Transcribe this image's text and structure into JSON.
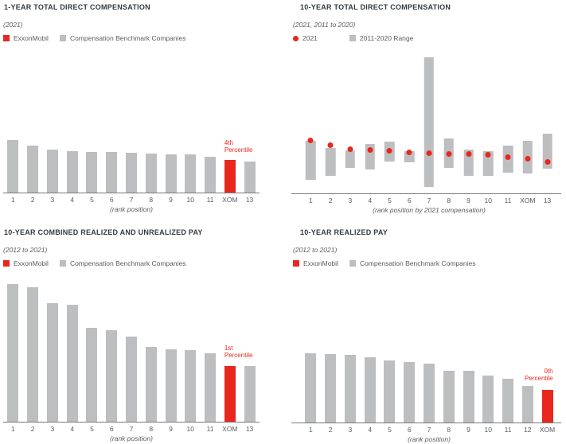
{
  "colors": {
    "exxon_red": "#e8271e",
    "benchmark_gray": "#bdbec0",
    "title_text": "#333a40",
    "muted_text": "#5a5b5e",
    "axis_line": "#797a7d",
    "background": "#ffffff"
  },
  "charts": [
    {
      "key": "one_year_total_direct_compensation",
      "title": "1-YEAR TOTAL DIRECT COMPENSATION",
      "subtitle": "(2021)",
      "legend": [
        {
          "swatch": "red-square",
          "label": "ExxonMobil"
        },
        {
          "swatch": "gray-square",
          "label": "Compensation Benchmark Companies"
        }
      ],
      "chart_data": {
        "type": "bar",
        "categories": [
          "1",
          "2",
          "3",
          "4",
          "5",
          "6",
          "7",
          "8",
          "9",
          "10",
          "11",
          "XOM",
          "13"
        ],
        "values": [
          66,
          59,
          54,
          52,
          51,
          51,
          50,
          49,
          48,
          48,
          45,
          41,
          39
        ],
        "value_units": "relative bar heights (px) — chart shows no numeric axis",
        "xlabel": "(rank position)",
        "highlight": {
          "category": "XOM",
          "index": 11,
          "color": "#e8271e"
        },
        "annotation": {
          "text": "4th Percentile",
          "lines": [
            "4th",
            "Percentile"
          ],
          "align": "left",
          "color": "#e8271e"
        },
        "grid": false,
        "legend_position": "top-left"
      }
    },
    {
      "key": "ten_year_total_direct_compensation",
      "title": "10-YEAR TOTAL DIRECT COMPENSATION",
      "subtitle": "(2021, 2011 to 2020)",
      "legend": [
        {
          "swatch": "red-dot",
          "label": "2021"
        },
        {
          "swatch": "gray-square",
          "label": "2011-2020 Range"
        }
      ],
      "chart_data": {
        "type": "range-dot",
        "categories": [
          "1",
          "2",
          "3",
          "4",
          "5",
          "6",
          "7",
          "8",
          "9",
          "10",
          "11",
          "XOM",
          "13"
        ],
        "series": [
          {
            "name": "2011-2020 Range",
            "low": [
              17,
              22,
              32,
              30,
              40,
              39,
              8,
              32,
              22,
              22,
              26,
              25,
              31
            ],
            "high": [
              66,
              57,
              54,
              62,
              65,
              53,
              171,
              69,
              55,
              53,
              60,
              66,
              75
            ]
          },
          {
            "name": "2021",
            "values": [
              67,
              61,
              56,
              55,
              54,
              52,
              51,
              50,
              50,
              49,
              46,
              44,
              40
            ]
          }
        ],
        "value_units": "relative heights (px) — chart shows no numeric axis",
        "xlabel": "(rank position by 2021 compensation)",
        "highlight": {
          "category": "XOM",
          "index": 11
        },
        "grid": false,
        "legend_position": "top-left"
      }
    },
    {
      "key": "ten_year_combined_realized_and_unrealized_pay",
      "title": "10-YEAR COMBINED REALIZED AND UNREALIZED PAY",
      "subtitle": "(2012 to 2021)",
      "legend": [
        {
          "swatch": "red-square",
          "label": "ExxonMobil"
        },
        {
          "swatch": "gray-square",
          "label": "Compensation Benchmark Companies"
        }
      ],
      "chart_data": {
        "type": "bar",
        "categories": [
          "1",
          "2",
          "3",
          "4",
          "5",
          "6",
          "7",
          "8",
          "9",
          "10",
          "11",
          "XOM",
          "13"
        ],
        "values": [
          173,
          169,
          149,
          147,
          118,
          115,
          107,
          94,
          91,
          90,
          86,
          70,
          70
        ],
        "value_units": "relative bar heights (px) — chart shows no numeric axis",
        "xlabel": "(rank position)",
        "highlight": {
          "category": "XOM",
          "index": 11,
          "color": "#e8271e"
        },
        "annotation": {
          "text": "1st Percentile",
          "lines": [
            "1st",
            "Percentile"
          ],
          "align": "left",
          "color": "#e8271e"
        },
        "grid": false,
        "legend_position": "top-left"
      }
    },
    {
      "key": "ten_year_realized_pay",
      "title": "10-YEAR REALIZED PAY",
      "subtitle": "(2012 to 2021)",
      "legend": [
        {
          "swatch": "red-square",
          "label": "ExxonMobil"
        },
        {
          "swatch": "gray-square",
          "label": "Compensation Benchmark Companies"
        }
      ],
      "chart_data": {
        "type": "bar",
        "categories": [
          "1",
          "2",
          "3",
          "4",
          "5",
          "6",
          "7",
          "8",
          "9",
          "10",
          "11",
          "12",
          "XOM"
        ],
        "values": [
          87,
          86,
          85,
          82,
          78,
          76,
          74,
          65,
          65,
          59,
          55,
          46,
          41
        ],
        "value_units": "relative bar heights (px) — chart shows no numeric axis",
        "xlabel": "(rank position)",
        "highlight": {
          "category": "XOM",
          "index": 12,
          "color": "#e8271e"
        },
        "annotation": {
          "text": "0th Percentile",
          "lines": [
            "0th",
            "Percentile"
          ],
          "align": "right",
          "color": "#e8271e"
        },
        "grid": false,
        "legend_position": "top-left"
      }
    }
  ]
}
